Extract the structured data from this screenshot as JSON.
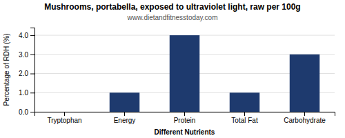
{
  "chart_data": {
    "type": "bar",
    "title": "Mushrooms, portabella, exposed to ultraviolet light, raw per 100g",
    "subtitle": "www.dietandfitnesstoday.com",
    "categories": [
      "Tryptophan",
      "Energy",
      "Protein",
      "Total Fat",
      "Carbohydrate"
    ],
    "values": [
      0.0,
      1.0,
      4.0,
      1.0,
      3.0
    ],
    "color": "#1e3a6e",
    "xlabel": "Different Nutrients",
    "ylabel": "Percentage of RDH (%)",
    "ylim": [
      0,
      4.4
    ],
    "yticks": [
      {
        "value": 0.0,
        "label": "0.0"
      },
      {
        "value": 1.0,
        "label": "1.0"
      },
      {
        "value": 2.0,
        "label": "2.0"
      },
      {
        "value": 3.0,
        "label": "3.0"
      },
      {
        "value": 4.0,
        "label": "4.0"
      }
    ],
    "grid": true
  }
}
